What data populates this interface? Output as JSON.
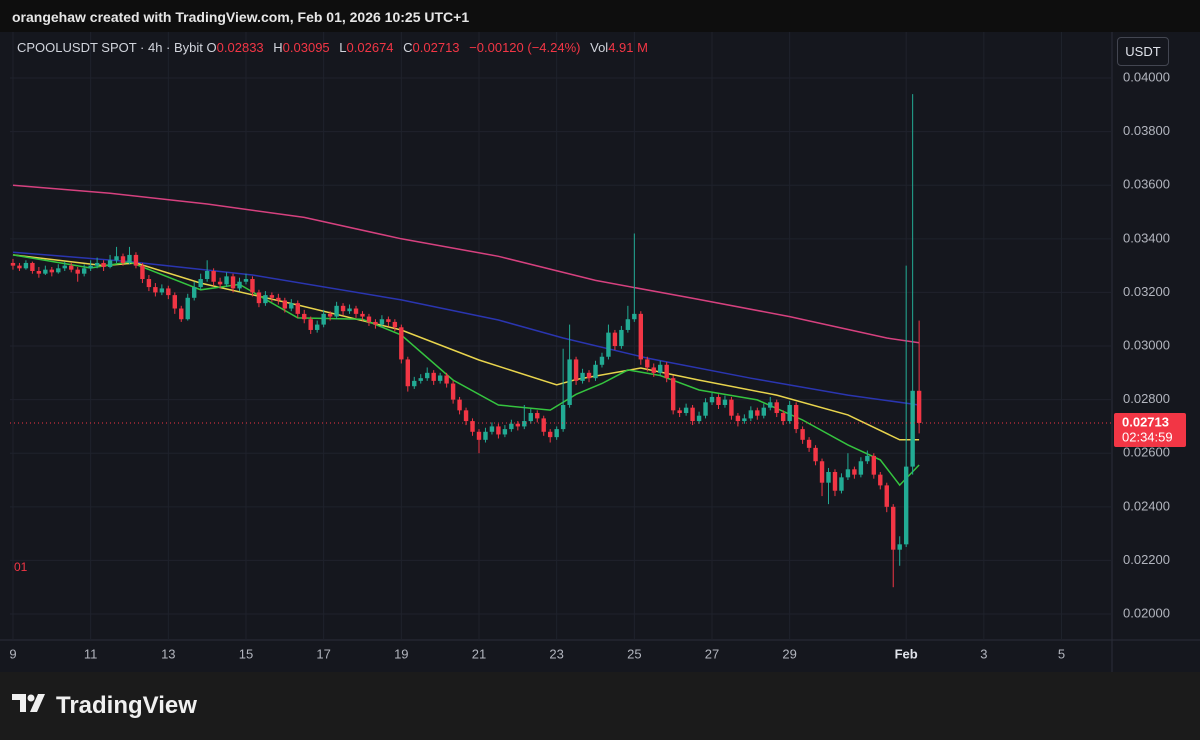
{
  "header": {
    "credit": "orangehaw created with TradingView.com, Feb 01, 2026 10:25 UTC+1"
  },
  "legend": {
    "symbol": "CPOOLUSDT SPOT · 4h · Bybit",
    "open_label": "O",
    "high_label": "H",
    "low_label": "L",
    "close_label": "C",
    "change": "−0.00120 (−4.24%)",
    "volume_label": "Vol",
    "volume": "4.91 M"
  },
  "currency_button": "USDT",
  "countdown": "02:34:59",
  "annotation": "01",
  "footer": {
    "brand": "TradingView"
  },
  "chart_data": {
    "type": "candlestick",
    "ylim": [
      0.01903,
      0.04142
    ],
    "yticks": [
      {
        "value": 0.02,
        "label": "0.02000"
      },
      {
        "value": 0.022,
        "label": "0.02200"
      },
      {
        "value": 0.024,
        "label": "0.02400"
      },
      {
        "value": 0.026,
        "label": "0.02600"
      },
      {
        "value": 0.028,
        "label": "0.02800"
      },
      {
        "value": 0.03,
        "label": "0.03000"
      },
      {
        "value": 0.032,
        "label": "0.03200"
      },
      {
        "value": 0.034,
        "label": "0.03400"
      },
      {
        "value": 0.036,
        "label": "0.03600"
      },
      {
        "value": 0.038,
        "label": "0.03800"
      },
      {
        "value": 0.04,
        "label": "0.04000"
      }
    ],
    "xlim": [
      -0.46,
      169.8
    ],
    "xticks": [
      {
        "value": 0,
        "label": "9"
      },
      {
        "value": 12,
        "label": "11"
      },
      {
        "value": 24,
        "label": "13"
      },
      {
        "value": 36,
        "label": "15"
      },
      {
        "value": 48,
        "label": "17"
      },
      {
        "value": 60,
        "label": "19"
      },
      {
        "value": 72,
        "label": "21"
      },
      {
        "value": 84,
        "label": "23"
      },
      {
        "value": 96,
        "label": "25"
      },
      {
        "value": 108,
        "label": "27"
      },
      {
        "value": 120,
        "label": "29"
      },
      {
        "value": 138,
        "label": "Feb"
      },
      {
        "value": 150,
        "label": "3"
      },
      {
        "value": 162,
        "label": "5"
      }
    ],
    "grid": true,
    "series": [
      {
        "type": "candlestick",
        "up_color": "#22ab94",
        "down_color": "#f23645",
        "ohlc": [
          [
            0.0331,
            0.03325,
            0.03285,
            0.033
          ],
          [
            0.033,
            0.0331,
            0.0328,
            0.0329
          ],
          [
            0.0329,
            0.0332,
            0.03285,
            0.0331
          ],
          [
            0.0331,
            0.03315,
            0.0327,
            0.0328
          ],
          [
            0.0328,
            0.03295,
            0.03255,
            0.0327
          ],
          [
            0.0327,
            0.033,
            0.03265,
            0.03285
          ],
          [
            0.03285,
            0.03295,
            0.0326,
            0.03275
          ],
          [
            0.03275,
            0.03305,
            0.0327,
            0.0329
          ],
          [
            0.0329,
            0.03315,
            0.0328,
            0.033
          ],
          [
            0.033,
            0.0331,
            0.03275,
            0.03285
          ],
          [
            0.03285,
            0.03295,
            0.0324,
            0.0327
          ],
          [
            0.0327,
            0.03305,
            0.0326,
            0.0329
          ],
          [
            0.0329,
            0.0332,
            0.0328,
            0.033
          ],
          [
            0.033,
            0.0333,
            0.0329,
            0.0331
          ],
          [
            0.0331,
            0.0332,
            0.0328,
            0.03295
          ],
          [
            0.03295,
            0.0334,
            0.0329,
            0.0332
          ],
          [
            0.0332,
            0.0337,
            0.0331,
            0.03335
          ],
          [
            0.03335,
            0.03345,
            0.033,
            0.0331
          ],
          [
            0.0331,
            0.0337,
            0.03305,
            0.0334
          ],
          [
            0.0334,
            0.0335,
            0.0329,
            0.033
          ],
          [
            0.033,
            0.0331,
            0.03235,
            0.0325
          ],
          [
            0.0325,
            0.03265,
            0.03205,
            0.0322
          ],
          [
            0.0322,
            0.03235,
            0.03185,
            0.032
          ],
          [
            0.032,
            0.0323,
            0.0319,
            0.03215
          ],
          [
            0.03215,
            0.03225,
            0.03175,
            0.0319
          ],
          [
            0.0319,
            0.032,
            0.0312,
            0.0314
          ],
          [
            0.0314,
            0.0315,
            0.0309,
            0.031
          ],
          [
            0.031,
            0.03195,
            0.03095,
            0.0318
          ],
          [
            0.0318,
            0.0324,
            0.0317,
            0.0322
          ],
          [
            0.0322,
            0.0327,
            0.0321,
            0.0325
          ],
          [
            0.0325,
            0.0332,
            0.0324,
            0.0328
          ],
          [
            0.0328,
            0.0329,
            0.03225,
            0.0324
          ],
          [
            0.0324,
            0.03255,
            0.03215,
            0.0323
          ],
          [
            0.0323,
            0.03275,
            0.0322,
            0.0326
          ],
          [
            0.0326,
            0.0327,
            0.032,
            0.03215
          ],
          [
            0.03215,
            0.03255,
            0.03205,
            0.0324
          ],
          [
            0.0324,
            0.0327,
            0.0323,
            0.0325
          ],
          [
            0.0325,
            0.0326,
            0.03185,
            0.032
          ],
          [
            0.032,
            0.0321,
            0.03145,
            0.0316
          ],
          [
            0.0316,
            0.03205,
            0.0315,
            0.0319
          ],
          [
            0.0319,
            0.032,
            0.03165,
            0.0318
          ],
          [
            0.0318,
            0.03195,
            0.03155,
            0.0317
          ],
          [
            0.0317,
            0.0318,
            0.03125,
            0.0314
          ],
          [
            0.0314,
            0.03175,
            0.0313,
            0.0316
          ],
          [
            0.0316,
            0.0317,
            0.03105,
            0.0312
          ],
          [
            0.0312,
            0.03135,
            0.03085,
            0.031
          ],
          [
            0.031,
            0.0311,
            0.03045,
            0.0306
          ],
          [
            0.0306,
            0.03095,
            0.0305,
            0.0308
          ],
          [
            0.0308,
            0.03135,
            0.0307,
            0.0312
          ],
          [
            0.0312,
            0.0313,
            0.03095,
            0.0311
          ],
          [
            0.0311,
            0.03165,
            0.031,
            0.0315
          ],
          [
            0.0315,
            0.0316,
            0.03115,
            0.0313
          ],
          [
            0.0313,
            0.03155,
            0.0312,
            0.0314
          ],
          [
            0.0314,
            0.0315,
            0.03105,
            0.0312
          ],
          [
            0.0312,
            0.0313,
            0.03095,
            0.0311
          ],
          [
            0.0311,
            0.0312,
            0.03075,
            0.0309
          ],
          [
            0.0309,
            0.031,
            0.03065,
            0.0308
          ],
          [
            0.0308,
            0.03115,
            0.0307,
            0.031
          ],
          [
            0.031,
            0.0311,
            0.03075,
            0.0309
          ],
          [
            0.0309,
            0.031,
            0.03055,
            0.0307
          ],
          [
            0.0307,
            0.0308,
            0.02935,
            0.0295
          ],
          [
            0.0295,
            0.0296,
            0.0283,
            0.0285
          ],
          [
            0.0285,
            0.02885,
            0.0284,
            0.0287
          ],
          [
            0.0287,
            0.02895,
            0.0286,
            0.0288
          ],
          [
            0.0288,
            0.0292,
            0.0287,
            0.029
          ],
          [
            0.029,
            0.0291,
            0.02855,
            0.0287
          ],
          [
            0.0287,
            0.029,
            0.0286,
            0.0289
          ],
          [
            0.0289,
            0.029,
            0.02845,
            0.0286
          ],
          [
            0.0286,
            0.0287,
            0.02785,
            0.028
          ],
          [
            0.028,
            0.0281,
            0.02745,
            0.0276
          ],
          [
            0.0276,
            0.0277,
            0.02705,
            0.0272
          ],
          [
            0.0272,
            0.0273,
            0.02665,
            0.0268
          ],
          [
            0.0268,
            0.0269,
            0.026,
            0.0265
          ],
          [
            0.0265,
            0.02695,
            0.0264,
            0.0268
          ],
          [
            0.0268,
            0.02715,
            0.0267,
            0.027
          ],
          [
            0.027,
            0.0271,
            0.02655,
            0.0267
          ],
          [
            0.0267,
            0.02705,
            0.0266,
            0.0269
          ],
          [
            0.0269,
            0.02725,
            0.0268,
            0.0271
          ],
          [
            0.0271,
            0.0272,
            0.02685,
            0.027
          ],
          [
            0.027,
            0.0278,
            0.0269,
            0.0272
          ],
          [
            0.0272,
            0.02765,
            0.0271,
            0.0275
          ],
          [
            0.0275,
            0.0276,
            0.02715,
            0.0273
          ],
          [
            0.0273,
            0.0274,
            0.02665,
            0.0268
          ],
          [
            0.0268,
            0.0269,
            0.0264,
            0.0266
          ],
          [
            0.0266,
            0.027,
            0.0265,
            0.0269
          ],
          [
            0.0269,
            0.0299,
            0.0268,
            0.0278
          ],
          [
            0.0278,
            0.0308,
            0.0277,
            0.0295
          ],
          [
            0.0295,
            0.0296,
            0.02855,
            0.0287
          ],
          [
            0.0287,
            0.02915,
            0.0286,
            0.029
          ],
          [
            0.029,
            0.0291,
            0.02865,
            0.0288
          ],
          [
            0.0288,
            0.02945,
            0.0287,
            0.0293
          ],
          [
            0.0293,
            0.02975,
            0.0292,
            0.0296
          ],
          [
            0.0296,
            0.0308,
            0.0295,
            0.0305
          ],
          [
            0.0305,
            0.0306,
            0.02985,
            0.03
          ],
          [
            0.03,
            0.03075,
            0.0299,
            0.0306
          ],
          [
            0.0306,
            0.0315,
            0.0305,
            0.031
          ],
          [
            0.031,
            0.0342,
            0.0309,
            0.0312
          ],
          [
            0.0312,
            0.0313,
            0.0293,
            0.0295
          ],
          [
            0.0295,
            0.0296,
            0.02905,
            0.0292
          ],
          [
            0.0292,
            0.02935,
            0.02885,
            0.029
          ],
          [
            0.029,
            0.02945,
            0.0289,
            0.0293
          ],
          [
            0.0293,
            0.0294,
            0.02865,
            0.0288
          ],
          [
            0.0288,
            0.0289,
            0.02745,
            0.0276
          ],
          [
            0.0276,
            0.0277,
            0.02735,
            0.0275
          ],
          [
            0.0275,
            0.02785,
            0.0274,
            0.0277
          ],
          [
            0.0277,
            0.0278,
            0.02705,
            0.0272
          ],
          [
            0.0272,
            0.02755,
            0.0271,
            0.0274
          ],
          [
            0.0274,
            0.02805,
            0.0273,
            0.0279
          ],
          [
            0.0279,
            0.02825,
            0.0278,
            0.0281
          ],
          [
            0.0281,
            0.0282,
            0.02765,
            0.0278
          ],
          [
            0.0278,
            0.02815,
            0.0277,
            0.028
          ],
          [
            0.028,
            0.0281,
            0.02725,
            0.0274
          ],
          [
            0.0274,
            0.0275,
            0.027,
            0.0272
          ],
          [
            0.0272,
            0.02745,
            0.0271,
            0.0273
          ],
          [
            0.0273,
            0.02775,
            0.0272,
            0.0276
          ],
          [
            0.0276,
            0.0277,
            0.02725,
            0.0274
          ],
          [
            0.0274,
            0.02785,
            0.0273,
            0.0277
          ],
          [
            0.0277,
            0.0281,
            0.0276,
            0.0279
          ],
          [
            0.0279,
            0.028,
            0.02735,
            0.0275
          ],
          [
            0.0275,
            0.0276,
            0.02705,
            0.0272
          ],
          [
            0.0272,
            0.02795,
            0.0271,
            0.0278
          ],
          [
            0.0278,
            0.0279,
            0.02675,
            0.0269
          ],
          [
            0.0269,
            0.027,
            0.02635,
            0.0265
          ],
          [
            0.0265,
            0.0266,
            0.02605,
            0.0262
          ],
          [
            0.0262,
            0.0263,
            0.02555,
            0.0257
          ],
          [
            0.0257,
            0.0258,
            0.0244,
            0.0249
          ],
          [
            0.0249,
            0.02545,
            0.0241,
            0.0253
          ],
          [
            0.0253,
            0.0254,
            0.0244,
            0.0246
          ],
          [
            0.0246,
            0.02525,
            0.0245,
            0.0251
          ],
          [
            0.0251,
            0.026,
            0.025,
            0.0254
          ],
          [
            0.0254,
            0.0255,
            0.02505,
            0.0252
          ],
          [
            0.0252,
            0.02585,
            0.0251,
            0.0257
          ],
          [
            0.0257,
            0.0261,
            0.0256,
            0.0259
          ],
          [
            0.0259,
            0.026,
            0.02505,
            0.0252
          ],
          [
            0.0252,
            0.0253,
            0.02465,
            0.0248
          ],
          [
            0.0248,
            0.0249,
            0.0238,
            0.024
          ],
          [
            0.024,
            0.0241,
            0.021,
            0.0224
          ],
          [
            0.0224,
            0.0229,
            0.0218,
            0.0226
          ],
          [
            0.0226,
            0.033,
            0.0225,
            0.0255
          ],
          [
            0.0255,
            0.0394,
            0.0252,
            0.02833
          ],
          [
            0.02833,
            0.03095,
            0.02674,
            0.02713
          ]
        ]
      },
      {
        "type": "line",
        "color": "#d6417f",
        "x": [
          0,
          15,
          30,
          45,
          60,
          75,
          90,
          105,
          120,
          135,
          140
        ],
        "values": [
          0.036,
          0.0357,
          0.0353,
          0.0348,
          0.034,
          0.03335,
          0.03245,
          0.03178,
          0.0311,
          0.0303,
          0.03012
        ]
      },
      {
        "type": "line",
        "color": "#2a35b0",
        "x": [
          0,
          18,
          37,
          60,
          75,
          85,
          98,
          114,
          129,
          140
        ],
        "values": [
          0.0335,
          0.03315,
          0.03265,
          0.03172,
          0.03097,
          0.0303,
          0.02955,
          0.0288,
          0.02817,
          0.0278
        ]
      },
      {
        "type": "line",
        "color": "#e8d44d",
        "x": [
          0,
          14,
          19,
          29,
          44,
          60,
          72,
          84,
          87,
          97,
          106,
          118,
          129,
          137,
          140
        ],
        "values": [
          0.0334,
          0.033,
          0.0331,
          0.03235,
          0.03153,
          0.0306,
          0.02948,
          0.02855,
          0.02875,
          0.02918,
          0.02873,
          0.02817,
          0.02743,
          0.0265,
          0.0265
        ]
      },
      {
        "type": "line",
        "color": "#35c43f",
        "x": [
          0,
          12,
          18,
          29,
          35,
          44,
          54,
          60,
          68,
          75,
          83,
          87,
          91,
          95,
          100,
          106,
          115,
          122,
          129,
          134,
          137,
          140
        ],
        "values": [
          0.0334,
          0.03291,
          0.03314,
          0.0321,
          0.0323,
          0.03105,
          0.031,
          0.03041,
          0.02873,
          0.0278,
          0.02761,
          0.0282,
          0.0286,
          0.02911,
          0.0289,
          0.02836,
          0.02799,
          0.02724,
          0.02631,
          0.02575,
          0.02481,
          0.02556
        ]
      }
    ]
  }
}
